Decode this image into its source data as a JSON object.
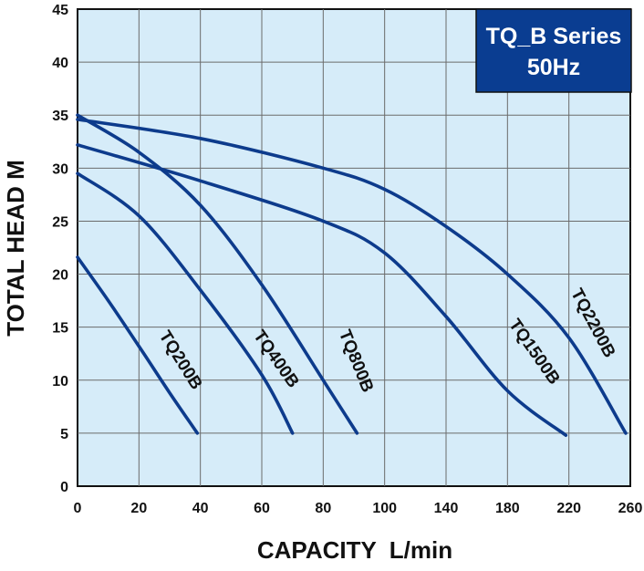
{
  "chart_data": {
    "type": "line",
    "title": "TQ_B Series",
    "subtitle": "50Hz",
    "xlabel": "CAPACITY  L/min",
    "ylabel": "TOTAL HEAD M",
    "x_ticks": [
      "0",
      "20",
      "40",
      "60",
      "80",
      "100",
      "140",
      "180",
      "220",
      "260"
    ],
    "y_ticks": [
      "0",
      "5",
      "10",
      "15",
      "20",
      "25",
      "30",
      "35",
      "40",
      "45"
    ],
    "ylim": [
      0,
      45
    ],
    "grid": true,
    "x_scale": "piecewise: 0-100 step 20, 100-260 step 40",
    "colors": {
      "line": "#0d3b8c",
      "plot_bg": "#d6ecf9",
      "grid": "#6b6b6b",
      "legend_bg": "#0a3d91"
    },
    "series": [
      {
        "name": "TQ200B",
        "x": [
          0,
          10,
          20,
          30,
          39
        ],
        "y": [
          21.6,
          17.5,
          13.2,
          8.8,
          5.0
        ]
      },
      {
        "name": "TQ400B",
        "x": [
          0,
          20,
          40,
          60,
          70
        ],
        "y": [
          29.5,
          25.5,
          18.5,
          10.5,
          5.0
        ]
      },
      {
        "name": "TQ800B",
        "x": [
          0,
          20,
          40,
          60,
          80,
          91
        ],
        "y": [
          35.0,
          31.5,
          26.5,
          19.0,
          10.0,
          5.0
        ]
      },
      {
        "name": "TQ1500B",
        "x": [
          0,
          40,
          80,
          100,
          140,
          180,
          218
        ],
        "y": [
          32.2,
          28.8,
          25.0,
          22.0,
          16.0,
          9.0,
          4.8
        ]
      },
      {
        "name": "TQ2200B",
        "x": [
          0,
          40,
          80,
          100,
          140,
          180,
          220,
          257
        ],
        "y": [
          34.6,
          32.8,
          30.0,
          28.0,
          24.5,
          20.0,
          14.0,
          5.0
        ]
      }
    ]
  }
}
